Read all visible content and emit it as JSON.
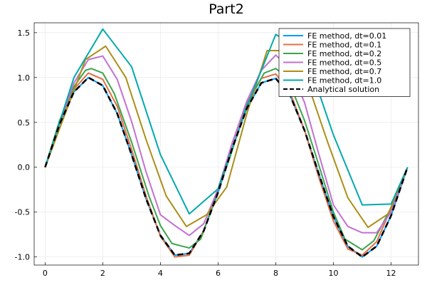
{
  "chart_data": {
    "type": "line",
    "title": "Part2",
    "xlabel": "",
    "ylabel": "",
    "xlim": [
      -0.38,
      12.95
    ],
    "ylim": [
      -1.09,
      1.61
    ],
    "xticks": [
      0,
      2,
      4,
      6,
      8,
      10,
      12
    ],
    "xtick_labels": [
      "0",
      "2",
      "4",
      "6",
      "8",
      "10",
      "12"
    ],
    "yticks": [
      -1.0,
      -0.5,
      0.0,
      0.5,
      1.0,
      1.5
    ],
    "ytick_labels": [
      "-1.0",
      "-0.5",
      "0.0",
      "0.5",
      "1.0",
      "1.5"
    ],
    "grid": true,
    "legend_position": "top-right",
    "series": [
      {
        "name": "FE method, dt=0.01",
        "color": "#009AFA",
        "dash": "solid",
        "x": [
          0,
          0.5,
          1.0,
          1.5,
          2.0,
          2.5,
          3.0,
          3.5,
          4.0,
          4.5,
          5.0,
          5.5,
          6.0,
          6.5,
          7.0,
          7.5,
          8.0,
          8.5,
          9.0,
          9.5,
          10.0,
          10.5,
          11.0,
          11.5,
          12.0,
          12.57
        ],
        "y": [
          0,
          0.48,
          0.84,
          1.0,
          0.91,
          0.6,
          0.14,
          -0.35,
          -0.76,
          -0.98,
          -0.96,
          -0.71,
          -0.28,
          0.22,
          0.66,
          0.94,
          0.99,
          0.8,
          0.41,
          -0.08,
          -0.55,
          -0.88,
          -1.0,
          -0.88,
          -0.54,
          0
        ]
      },
      {
        "name": "FE method, dt=0.1",
        "color": "#E36F47",
        "dash": "solid",
        "x": [
          0,
          0.5,
          1.0,
          1.5,
          2.0,
          2.5,
          3.0,
          3.5,
          4.0,
          4.5,
          5.0,
          5.5,
          6.0,
          6.5,
          7.0,
          7.5,
          8.0,
          8.5,
          9.0,
          9.5,
          10.0,
          10.5,
          11.0,
          11.5,
          12.0,
          12.57
        ],
        "y": [
          0,
          0.5,
          0.87,
          1.05,
          0.98,
          0.68,
          0.2,
          -0.32,
          -0.77,
          -1.0,
          -0.98,
          -0.71,
          -0.24,
          0.28,
          0.72,
          0.99,
          1.04,
          0.83,
          0.41,
          -0.12,
          -0.6,
          -0.91,
          -0.98,
          -0.83,
          -0.46,
          0
        ]
      },
      {
        "name": "FE method, dt=0.2",
        "color": "#3EA44E",
        "dash": "solid",
        "x": [
          0,
          0.5,
          1.0,
          1.4,
          1.6,
          2.0,
          2.4,
          3.0,
          3.6,
          4.0,
          4.4,
          5.0,
          5.4,
          6.0,
          6.4,
          7.0,
          7.6,
          8.0,
          8.4,
          9.0,
          9.4,
          10.0,
          10.4,
          11.0,
          11.4,
          12.0,
          12.57
        ],
        "y": [
          0,
          0.52,
          0.9,
          1.08,
          1.1,
          1.05,
          0.82,
          0.28,
          -0.32,
          -0.65,
          -0.85,
          -0.9,
          -0.8,
          -0.25,
          0.1,
          0.7,
          1.05,
          1.1,
          1.0,
          0.52,
          0.12,
          -0.5,
          -0.8,
          -0.92,
          -0.82,
          -0.45,
          0
        ]
      },
      {
        "name": "FE method, dt=0.5",
        "color": "#C271D2",
        "dash": "solid",
        "x": [
          0,
          0.5,
          1.0,
          1.5,
          2.0,
          2.5,
          3.0,
          3.5,
          4.0,
          4.5,
          5.0,
          5.5,
          6.0,
          6.5,
          7.0,
          7.5,
          8.0,
          8.5,
          9.0,
          9.5,
          10.0,
          10.5,
          11.0,
          11.5,
          12.0,
          12.57
        ],
        "y": [
          0,
          0.5,
          0.94,
          1.2,
          1.24,
          0.98,
          0.51,
          -0.05,
          -0.53,
          -0.65,
          -0.76,
          -0.63,
          -0.24,
          0.28,
          0.74,
          1.08,
          1.25,
          1.1,
          0.72,
          0.14,
          -0.42,
          -0.66,
          -0.73,
          -0.73,
          -0.5,
          0
        ]
      },
      {
        "name": "FE method, dt=0.7",
        "color": "#AC8E18",
        "dash": "solid",
        "x": [
          0,
          0.7,
          1.4,
          2.1,
          2.8,
          3.5,
          4.2,
          4.9,
          5.6,
          6.3,
          7.0,
          7.7,
          8.4,
          9.1,
          9.8,
          10.5,
          11.2,
          11.9,
          12.57
        ],
        "y": [
          0,
          0.6,
          1.2,
          1.35,
          1.0,
          0.31,
          -0.32,
          -0.66,
          -0.53,
          -0.22,
          0.6,
          1.3,
          1.3,
          0.94,
          0.28,
          -0.34,
          -0.67,
          -0.52,
          0
        ]
      },
      {
        "name": "FE method, dt=1.0",
        "color": "#00A9AD",
        "dash": "solid",
        "x": [
          0,
          1.0,
          2.0,
          3.0,
          4.0,
          5.0,
          6.0,
          7.0,
          8.0,
          9.0,
          10.0,
          11.0,
          12.0,
          12.57
        ],
        "y": [
          0,
          1.0,
          1.54,
          1.12,
          0.14,
          -0.52,
          -0.24,
          0.68,
          1.48,
          1.3,
          0.36,
          -0.42,
          -0.41,
          0
        ]
      },
      {
        "name": "Analytical solution",
        "color": "#000000",
        "dash": "dashed",
        "x": [
          0,
          0.5,
          1.0,
          1.5,
          2.0,
          2.5,
          3.0,
          3.5,
          4.0,
          4.5,
          5.0,
          5.5,
          6.0,
          6.5,
          7.0,
          7.5,
          8.0,
          8.5,
          9.0,
          9.5,
          10.0,
          10.5,
          11.0,
          11.5,
          12.0,
          12.57
        ],
        "y": [
          0,
          0.48,
          0.84,
          1.0,
          0.91,
          0.6,
          0.14,
          -0.35,
          -0.76,
          -0.98,
          -0.96,
          -0.71,
          -0.28,
          0.22,
          0.66,
          0.94,
          0.99,
          0.8,
          0.41,
          -0.08,
          -0.55,
          -0.88,
          -1.0,
          -0.88,
          -0.54,
          0
        ]
      }
    ]
  }
}
